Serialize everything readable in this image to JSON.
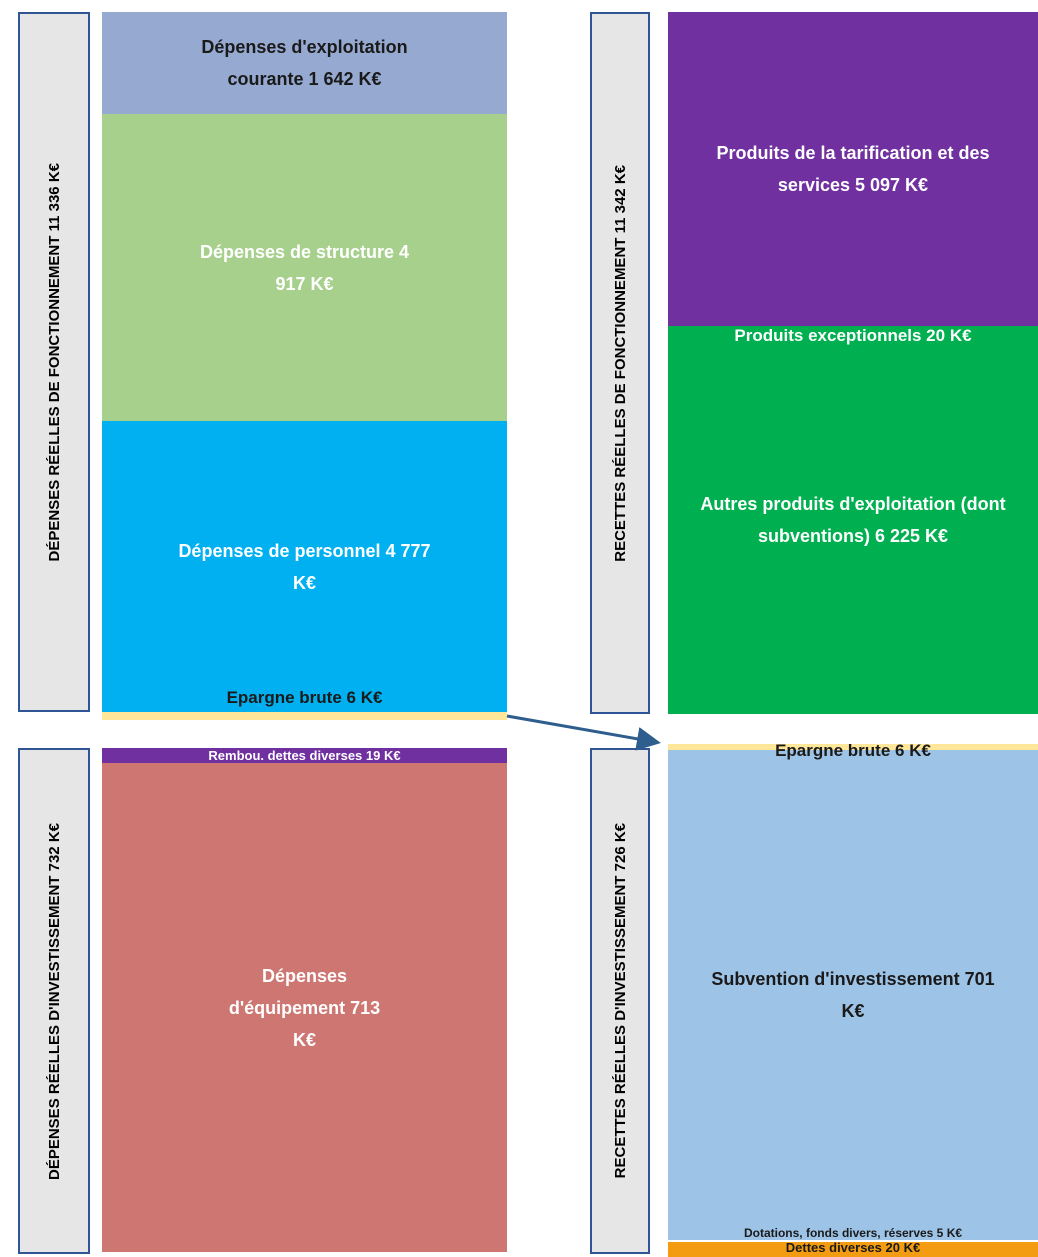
{
  "side_labels": [
    "DÉPENSES RÉELLES DE FONCTIONNEMENT 11 336 K€",
    "DÉPENSES RÉELLES D'INVESTISSEMENT 732 K€",
    "RECETTES RÉELLES DE FONCTIONNEMENT 11 342 K€",
    "RECETTES RÉELLES D'INVESTISSEMENT 726 K€"
  ],
  "blocks": [
    "Dépenses d'exploitation courante 1 642 K€",
    "Dépenses de structure 4 917 K€",
    "Dépenses de personnel 4 777 K€",
    "Epargne brute 6 K€",
    "Rembou. dettes diverses 19 K€",
    "Dépenses d'équipement 713 K€",
    "Produits de la tarification et des services 5 097 K€",
    "Produits exceptionnels 20 K€",
    "Autres produits d'exploitation (dont subventions) 6 225 K€",
    "Epargne brute 6 K€",
    "Subvention d'investissement 701 K€",
    "Dotations, fonds divers, réserves 5 K€",
    "Dettes diverses 20 K€"
  ]
}
